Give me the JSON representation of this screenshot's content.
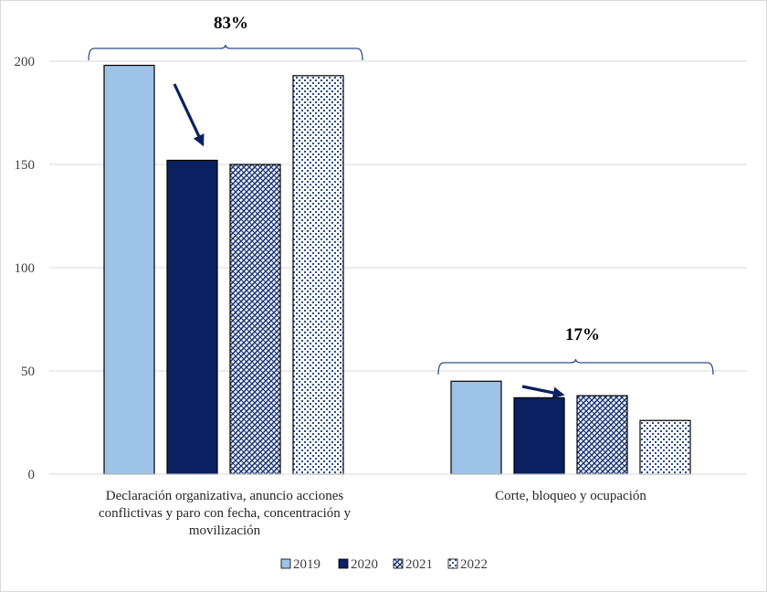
{
  "chart_data": {
    "type": "bar",
    "categories": [
      [
        "Declaración organizativa, anuncio acciones",
        "conflictivas y paro con fecha, concentración y",
        "movilización"
      ],
      [
        "Corte, bloqueo  y ocupación"
      ]
    ],
    "series": [
      {
        "name": "2019",
        "values": [
          198,
          45
        ],
        "color": "#9dc3e6",
        "pattern": "solid"
      },
      {
        "name": "2020",
        "values": [
          152,
          37
        ],
        "color": "#0b2060",
        "pattern": "solid"
      },
      {
        "name": "2021",
        "values": [
          150,
          38
        ],
        "color": "#1f3a7a",
        "pattern": "diagonal-check"
      },
      {
        "name": "2022",
        "values": [
          193,
          26
        ],
        "color": "#1f3a7a",
        "pattern": "dots"
      }
    ],
    "ylim": [
      0,
      200
    ],
    "yticks": [
      0,
      50,
      100,
      150,
      200
    ],
    "grid": true,
    "legend": "bottom",
    "annotations": [
      {
        "text": "83%",
        "group": 0
      },
      {
        "text": "17%",
        "group": 1
      }
    ],
    "arrows": [
      {
        "group": 0,
        "points_to": "2020"
      },
      {
        "group": 1,
        "points_to": "2020"
      }
    ]
  }
}
